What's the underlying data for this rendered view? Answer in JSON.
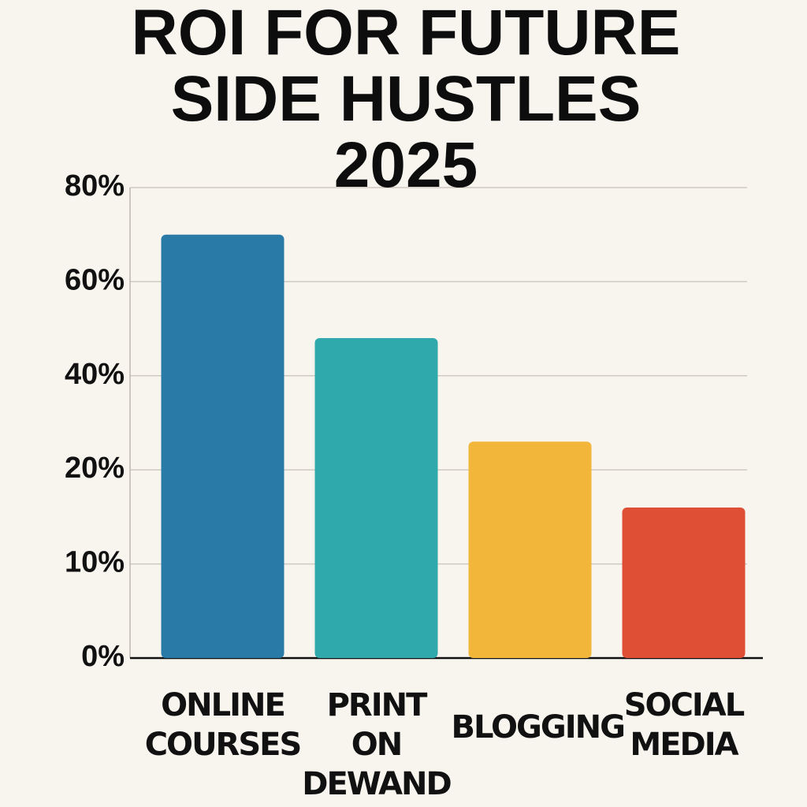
{
  "chart_data": {
    "type": "bar",
    "title": "ROI FOR FUTURE\nSIDE HUSTLES\n2025",
    "categories": [
      "ONLINE COURSES",
      "PRINT ON DEWAND",
      "BLOGGING",
      "SOCIAL MEDIA"
    ],
    "values": [
      70,
      48,
      26,
      16
    ],
    "colors": [
      "#2a7aa8",
      "#2fa9ab",
      "#f2b63a",
      "#df4f36"
    ],
    "ylim": [
      0,
      80
    ],
    "yticks": [
      {
        "value": 0,
        "label": "0%"
      },
      {
        "value": 10,
        "label": "10%"
      },
      {
        "value": 20,
        "label": "20%"
      },
      {
        "value": 40,
        "label": "40%"
      },
      {
        "value": 60,
        "label": "60%"
      },
      {
        "value": 80,
        "label": "80%"
      }
    ],
    "grid": true
  }
}
